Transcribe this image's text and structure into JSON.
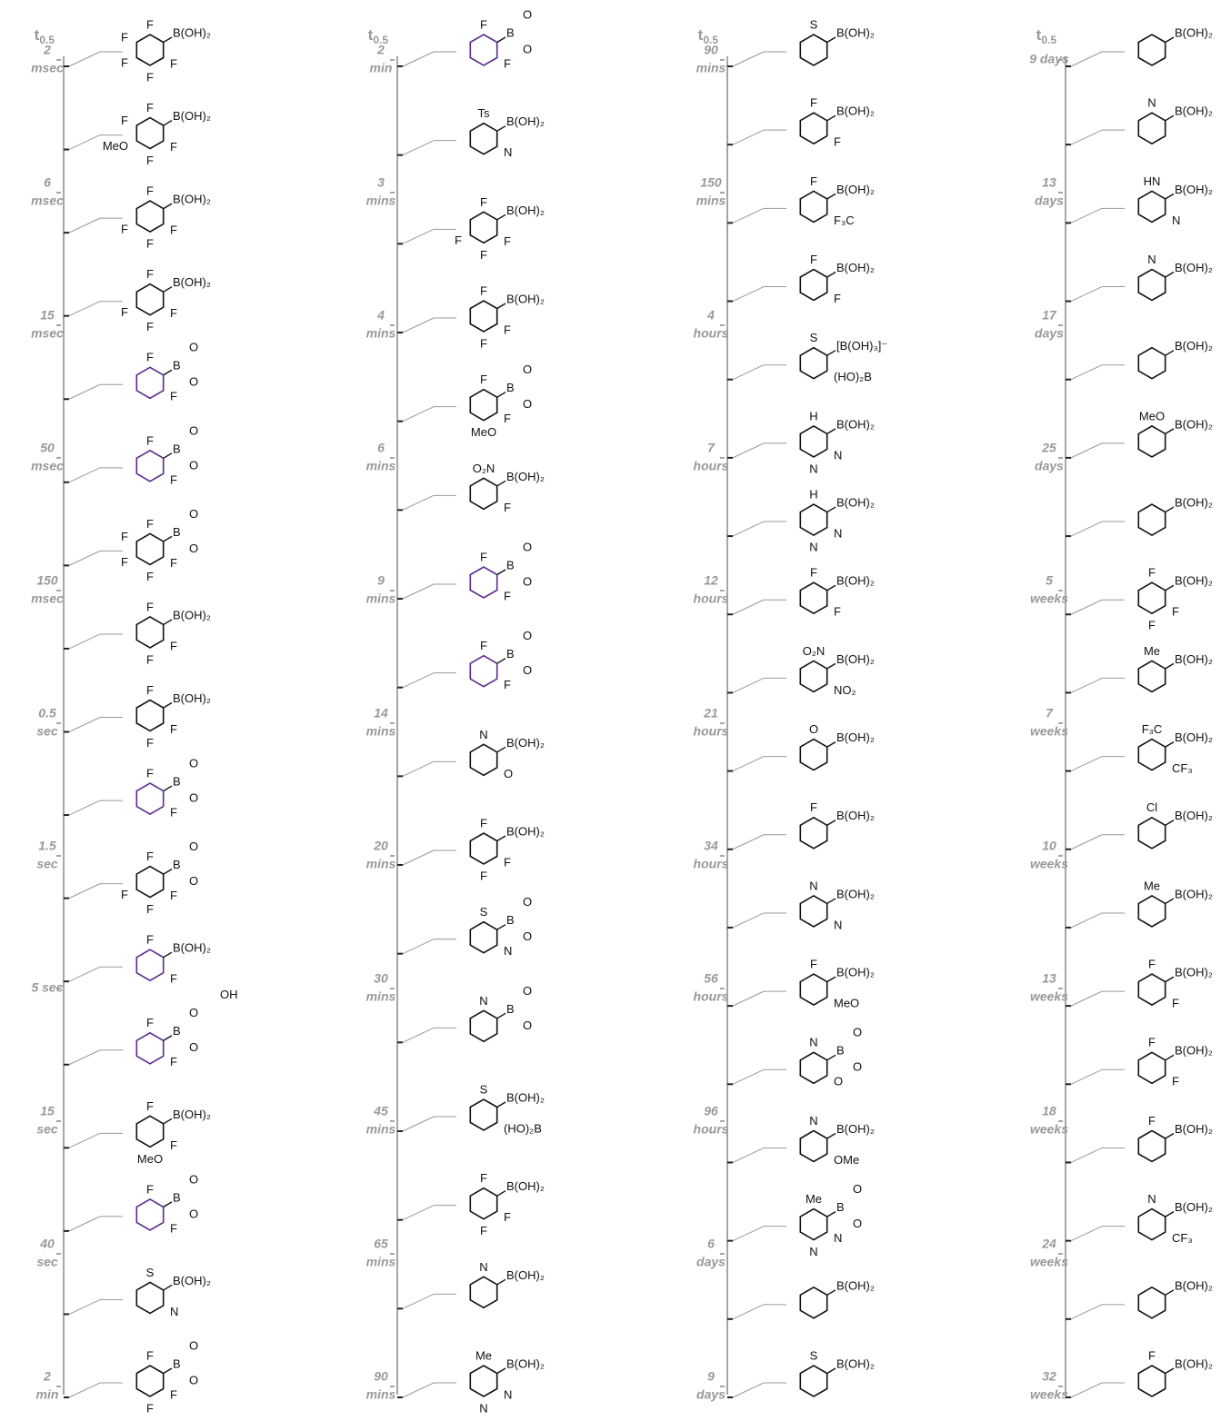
{
  "columns": [
    {
      "header": {
        "symbol": "t",
        "subscript": "0.5"
      },
      "ticks": [
        [
          "2",
          "msec"
        ],
        [
          "6",
          "msec"
        ],
        [
          "15",
          "msec"
        ],
        [
          "50",
          "msec"
        ],
        [
          "150",
          "msec"
        ],
        [
          "0.5",
          "sec"
        ],
        [
          "1.5",
          "sec"
        ],
        [
          "5 sec"
        ],
        [
          "15",
          "sec"
        ],
        [
          "40",
          "sec"
        ],
        [
          "2",
          "min"
        ]
      ],
      "compounds": [
        {
          "boron": "B(OH)₂",
          "subs": [
            "F",
            "F",
            "F",
            "F",
            "F"
          ]
        },
        {
          "boron": "B(OH)₂",
          "subs": [
            "F",
            "F",
            "F",
            "MeO",
            "F"
          ]
        },
        {
          "boron": "B(OH)₂",
          "subs": [
            "F",
            "F",
            "F",
            "F"
          ]
        },
        {
          "boron": "B(OH)₂",
          "subs": [
            "F",
            "F",
            "F",
            "F"
          ]
        },
        {
          "boron": "B",
          "ester": [
            "O",
            "O"
          ],
          "subs": [
            "F",
            "F"
          ],
          "ring": "#5b2a8c"
        },
        {
          "boron": "B",
          "ester": [
            "O",
            "O"
          ],
          "subs": [
            "F",
            "F"
          ],
          "ring": "#5b2a8c"
        },
        {
          "boron": "B",
          "ester": [
            "O",
            "O"
          ],
          "subs": [
            "F",
            "F",
            "F",
            "F",
            "F"
          ]
        },
        {
          "boron": "B(OH)₂",
          "subs": [
            "F",
            "F",
            "F"
          ]
        },
        {
          "boron": "B(OH)₂",
          "subs": [
            "F",
            "F",
            "F"
          ]
        },
        {
          "boron": "B",
          "ester": [
            "O",
            "O"
          ],
          "subs": [
            "F",
            "F"
          ],
          "ring": "#5b2a8c"
        },
        {
          "boron": "B",
          "ester": [
            "O",
            "O"
          ],
          "subs": [
            "F",
            "F",
            "F",
            "F"
          ]
        },
        {
          "boron": "B(OH)₂",
          "subs": [
            "F",
            "F"
          ],
          "ring": "#5b2a8c"
        },
        {
          "boron": "B",
          "ester": [
            "O",
            "O",
            "OH"
          ],
          "subs": [
            "F",
            "F"
          ],
          "ring": "#5b2a8c"
        },
        {
          "boron": "B(OH)₂",
          "subs": [
            "F",
            "F",
            "MeO"
          ]
        },
        {
          "boron": "B",
          "ester": [
            "O",
            "O"
          ],
          "subs": [
            "F",
            "F"
          ],
          "ring": "#5b2a8c"
        },
        {
          "boron": "B(OH)₂",
          "subs": [
            "S",
            "N"
          ]
        },
        {
          "boron": "B",
          "ester": [
            "O",
            "O"
          ],
          "subs": [
            "F",
            "F",
            "F"
          ]
        }
      ]
    },
    {
      "header": {
        "symbol": "t",
        "subscript": "0.5"
      },
      "ticks": [
        [
          "2",
          "min"
        ],
        [
          "3",
          "mins"
        ],
        [
          "4",
          "mins"
        ],
        [
          "6",
          "mins"
        ],
        [
          "9",
          "mins"
        ],
        [
          "14",
          "mins"
        ],
        [
          "20",
          "mins"
        ],
        [
          "30",
          "mins"
        ],
        [
          "45",
          "mins"
        ],
        [
          "65",
          "mins"
        ],
        [
          "90",
          "mins"
        ]
      ],
      "compounds": [
        {
          "boron": "B",
          "ester": [
            "O",
            "O"
          ],
          "subs": [
            "F",
            "F"
          ],
          "ring": "#5b2a8c"
        },
        {
          "boron": "B(OH)₂",
          "subs": [
            "Ts",
            "N"
          ]
        },
        {
          "boron": "B(OH)₂",
          "subs": [
            "F",
            "F",
            "F",
            "F"
          ]
        },
        {
          "boron": "B(OH)₂",
          "subs": [
            "F",
            "F",
            "F"
          ]
        },
        {
          "boron": "B",
          "ester": [
            "O",
            "O"
          ],
          "subs": [
            "F",
            "F",
            "MeO"
          ]
        },
        {
          "boron": "B(OH)₂",
          "subs": [
            "O₂N",
            "F"
          ]
        },
        {
          "boron": "B",
          "ester": [
            "O",
            "O"
          ],
          "subs": [
            "F",
            "F"
          ],
          "ring": "#5b2a8c"
        },
        {
          "boron": "B",
          "ester": [
            "O",
            "O"
          ],
          "subs": [
            "F",
            "F"
          ],
          "ring": "#5b2a8c"
        },
        {
          "boron": "B(OH)₂",
          "subs": [
            "N",
            "O"
          ]
        },
        {
          "boron": "B(OH)₂",
          "subs": [
            "F",
            "F",
            "F"
          ]
        },
        {
          "boron": "B",
          "ester": [
            "O",
            "O"
          ],
          "subs": [
            "S",
            "N"
          ]
        },
        {
          "boron": "B",
          "ester": [
            "O",
            "O"
          ],
          "subs": [
            "N"
          ]
        },
        {
          "boron": "B(OH)₂",
          "subs": [
            "S",
            "(HO)₂B"
          ]
        },
        {
          "boron": "B(OH)₂",
          "subs": [
            "F",
            "F",
            "F"
          ]
        },
        {
          "boron": "B(OH)₂",
          "subs": [
            "N"
          ]
        },
        {
          "boron": "B(OH)₂",
          "subs": [
            "Me",
            "N",
            "N"
          ]
        }
      ]
    },
    {
      "header": {
        "symbol": "t",
        "subscript": "0.5"
      },
      "ticks": [
        [
          "90",
          "mins"
        ],
        [
          "150",
          "mins"
        ],
        [
          "4",
          "hours"
        ],
        [
          "7",
          "hours"
        ],
        [
          "12",
          "hours"
        ],
        [
          "21",
          "hours"
        ],
        [
          "34",
          "hours"
        ],
        [
          "56",
          "hours"
        ],
        [
          "96",
          "hours"
        ],
        [
          "6",
          "days"
        ],
        [
          "9",
          "days"
        ]
      ],
      "compounds": [
        {
          "boron": "B(OH)₂",
          "subs": [
            "S"
          ]
        },
        {
          "boron": "B(OH)₂",
          "subs": [
            "F",
            "F"
          ]
        },
        {
          "boron": "B(OH)₂",
          "subs": [
            "F",
            "F₃C"
          ]
        },
        {
          "boron": "B(OH)₂",
          "subs": [
            "F",
            "F"
          ]
        },
        {
          "boron": "[B(OH)₃]⁻",
          "subs": [
            "S",
            "(HO)₂B"
          ]
        },
        {
          "boron": "B(OH)₂",
          "subs": [
            "H",
            "N",
            "N"
          ]
        },
        {
          "boron": "B(OH)₂",
          "subs": [
            "H",
            "N",
            "N"
          ]
        },
        {
          "boron": "B(OH)₂",
          "subs": [
            "F",
            "F"
          ]
        },
        {
          "boron": "B(OH)₂",
          "subs": [
            "O₂N",
            "NO₂"
          ]
        },
        {
          "boron": "B(OH)₂",
          "subs": [
            "O"
          ]
        },
        {
          "boron": "B(OH)₂",
          "subs": [
            "F"
          ]
        },
        {
          "boron": "B(OH)₂",
          "subs": [
            "N",
            "N"
          ]
        },
        {
          "boron": "B(OH)₂",
          "subs": [
            "F",
            "MeO"
          ]
        },
        {
          "boron": "B",
          "ester": [
            "O",
            "O"
          ],
          "subs": [
            "N",
            "O"
          ]
        },
        {
          "boron": "B(OH)₂",
          "subs": [
            "N",
            "OMe"
          ]
        },
        {
          "boron": "B",
          "ester": [
            "O",
            "O"
          ],
          "subs": [
            "Me",
            "N",
            "N"
          ]
        },
        {
          "boron": "B(OH)₂",
          "subs": []
        },
        {
          "boron": "B(OH)₂",
          "subs": [
            "S"
          ]
        }
      ]
    },
    {
      "header": {
        "symbol": "t",
        "subscript": "0.5"
      },
      "ticks": [
        [
          "9 days"
        ],
        [
          "13",
          "days"
        ],
        [
          "17",
          "days"
        ],
        [
          "25",
          "days"
        ],
        [
          "5",
          "weeks"
        ],
        [
          "7",
          "weeks"
        ],
        [
          "10",
          "weeks"
        ],
        [
          "13",
          "weeks"
        ],
        [
          "18",
          "weeks"
        ],
        [
          "24",
          "weeks"
        ],
        [
          "32",
          "weeks"
        ]
      ],
      "compounds": [
        {
          "boron": "B(OH)₂",
          "subs": []
        },
        {
          "boron": "B(OH)₂",
          "subs": [
            "N"
          ]
        },
        {
          "boron": "B(OH)₂",
          "subs": [
            "HN",
            "N"
          ]
        },
        {
          "boron": "B(OH)₂",
          "subs": [
            "N"
          ]
        },
        {
          "boron": "B(OH)₂",
          "subs": []
        },
        {
          "boron": "B(OH)₂",
          "subs": [
            "MeO"
          ]
        },
        {
          "boron": "B(OH)₂",
          "subs": []
        },
        {
          "boron": "B(OH)₂",
          "subs": [
            "F",
            "F",
            "F"
          ]
        },
        {
          "boron": "B(OH)₂",
          "subs": [
            "Me"
          ]
        },
        {
          "boron": "B(OH)₂",
          "subs": [
            "F₃C",
            "CF₃"
          ]
        },
        {
          "boron": "B(OH)₂",
          "subs": [
            "Cl"
          ]
        },
        {
          "boron": "B(OH)₂",
          "subs": [
            "Me"
          ]
        },
        {
          "boron": "B(OH)₂",
          "subs": [
            "F",
            "F"
          ]
        },
        {
          "boron": "B(OH)₂",
          "subs": [
            "F",
            "F"
          ]
        },
        {
          "boron": "B(OH)₂",
          "subs": [
            "F"
          ]
        },
        {
          "boron": "B(OH)₂",
          "subs": [
            "N",
            "CF₃"
          ]
        },
        {
          "boron": "B(OH)₂",
          "subs": []
        },
        {
          "boron": "B(OH)₂",
          "subs": [
            "F"
          ]
        }
      ]
    }
  ]
}
